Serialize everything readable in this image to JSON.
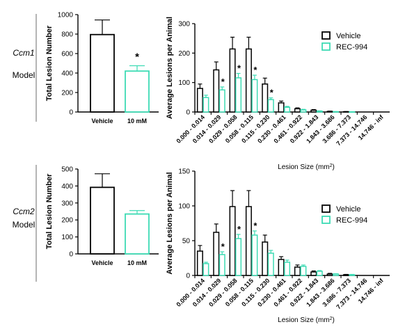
{
  "colors": {
    "vehicle": "#000000",
    "rec": "#3ddbb4",
    "axis": "#000000",
    "divider": "#6b6b6b"
  },
  "panels": [
    {
      "model_italic": "Ccm1",
      "model_word": "Model",
      "chart_data": [
        {
          "type": "bar",
          "ylabel": "Total Lesion Number",
          "ylim": [
            0,
            1000
          ],
          "yticks": [
            0,
            200,
            400,
            600,
            800,
            1000
          ],
          "categories": [
            "Vehicle",
            "10 mM"
          ],
          "values": [
            795,
            420
          ],
          "errors": [
            150,
            55
          ],
          "significance": [
            "",
            "*"
          ]
        },
        {
          "type": "bar",
          "ylabel": "Average Lesions per Animal",
          "xlabel": "Lesion Size (mm²)",
          "ylim": [
            0,
            300
          ],
          "yticks": [
            0,
            100,
            200,
            300
          ],
          "categories": [
            "0.000 - 0.014",
            "0.014 - 0.029",
            "0.029 - 0.058",
            "0.058 - 0.115",
            "0.115 - 0.230",
            "0.230 - 0.461",
            "0.461 - 0.922",
            "0.922 - 1.843",
            "1.843 - 3.686",
            "3.686 - 7.373",
            "7.373 - 14.746",
            "14.746 - inf"
          ],
          "series": [
            {
              "name": "Vehicle",
              "values": [
                80,
                143,
                214,
                214,
                95,
                31,
                11,
                6,
                2,
                1,
                0,
                0
              ],
              "errors": [
                15,
                27,
                40,
                40,
                20,
                6,
                3,
                2,
                1,
                0.5,
                0,
                0
              ],
              "significance": [
                "",
                "",
                "",
                "",
                "",
                "",
                "",
                "",
                "",
                "",
                "",
                ""
              ]
            },
            {
              "name": "REC-994",
              "values": [
                49,
                75,
                116,
                110,
                42,
                16,
                7,
                3,
                1,
                0.5,
                0,
                0
              ],
              "errors": [
                8,
                10,
                15,
                15,
                6,
                3,
                2,
                1,
                0.5,
                0,
                0,
                0
              ],
              "significance": [
                "",
                "*",
                "*",
                "*",
                "*",
                "",
                "",
                "",
                "",
                "",
                "",
                ""
              ]
            }
          ]
        }
      ]
    },
    {
      "model_italic": "Ccm2",
      "model_word": "Model",
      "chart_data": [
        {
          "type": "bar",
          "ylabel": "Total Lesion Number",
          "ylim": [
            0,
            500
          ],
          "yticks": [
            0,
            100,
            200,
            300,
            400,
            500
          ],
          "categories": [
            "Vehicle",
            "10 mM"
          ],
          "values": [
            392,
            235
          ],
          "errors": [
            80,
            20
          ],
          "significance": [
            "",
            ""
          ]
        },
        {
          "type": "bar",
          "ylabel": "Average Lesions per Animal",
          "xlabel": "Lesion Size (mm²)",
          "ylim": [
            0,
            150
          ],
          "yticks": [
            0,
            50,
            100,
            150
          ],
          "categories": [
            "0.000 - 0.014",
            "0.014 - 0.029",
            "0.029 - 0.058",
            "0.058 - 0.115",
            "0.115 - 0.230",
            "0.230 - 0.461",
            "0.461 - 0.922",
            "0.922 - 1.843",
            "1.843 - 3.686",
            "3.686 - 7.373",
            "7.373 - 14.746",
            "14.746 - inf"
          ],
          "series": [
            {
              "name": "Vehicle",
              "values": [
                35,
                62,
                99,
                99,
                48,
                23,
                12,
                5,
                2,
                1,
                0,
                0
              ],
              "errors": [
                8,
                12,
                23,
                23,
                10,
                4,
                3,
                1.5,
                1,
                0.5,
                0,
                0
              ],
              "significance": [
                "",
                "",
                "",
                "",
                "",
                "",
                "",
                "",
                "",
                "",
                "",
                ""
              ]
            },
            {
              "name": "REC-994",
              "values": [
                17,
                30,
                53,
                58,
                32,
                19,
                13,
                6,
                2,
                1,
                0,
                0
              ],
              "errors": [
                2,
                4,
                6,
                6,
                4,
                3,
                2,
                1,
                0.5,
                0.5,
                0,
                0
              ],
              "significance": [
                "",
                "*",
                "*",
                "*",
                "",
                "",
                "",
                "",
                "",
                "",
                "",
                ""
              ]
            }
          ]
        }
      ]
    }
  ]
}
